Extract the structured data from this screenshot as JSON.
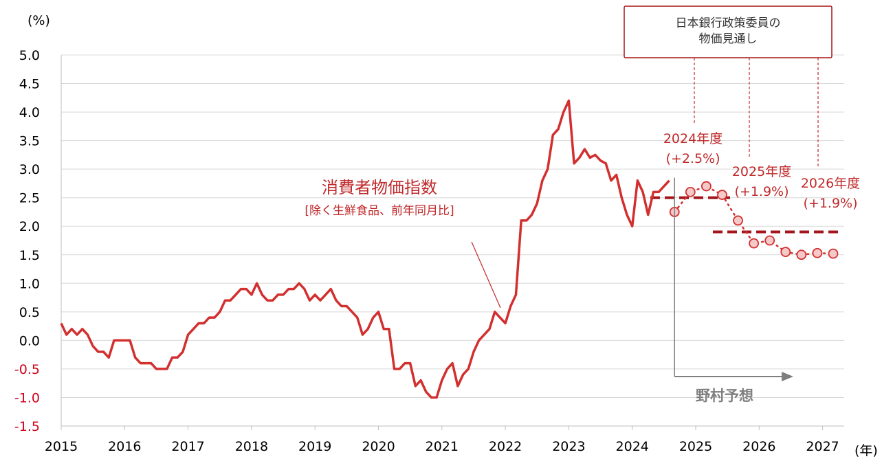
{
  "chart_data": {
    "type": "line",
    "y_unit_label": "(%)",
    "x_unit_label": "(年)",
    "ylim": [
      -1.5,
      5.0
    ],
    "yticks": [
      "5.0",
      "4.5",
      "4.0",
      "3.5",
      "3.0",
      "2.5",
      "2.0",
      "1.5",
      "1.0",
      "0.5",
      "0.0",
      "-0.5",
      "-1.0",
      "-1.5"
    ],
    "xlim": [
      2015,
      2027.333
    ],
    "xticks": [
      "2015",
      "2016",
      "2017",
      "2018",
      "2019",
      "2020",
      "2021",
      "2022",
      "2023",
      "2024",
      "2025",
      "2026",
      "2027"
    ],
    "colors": {
      "series": "#d22f2f",
      "boj": "#a3161c",
      "negative_tick": "#d0021b",
      "grid": "#d9d9d9",
      "forecast_arrow": "#7f7f7f"
    },
    "series": [
      {
        "name": "消費者物価指数",
        "subtitle": "[除く生鮮食品、前年同月比]",
        "start": "2015-01",
        "values": [
          0.3,
          0.1,
          0.2,
          0.1,
          0.2,
          0.1,
          -0.1,
          -0.2,
          -0.2,
          -0.3,
          0.0,
          0.0,
          0.0,
          0.0,
          -0.3,
          -0.4,
          -0.4,
          -0.4,
          -0.5,
          -0.5,
          -0.5,
          -0.3,
          -0.3,
          -0.2,
          0.1,
          0.2,
          0.3,
          0.3,
          0.4,
          0.4,
          0.5,
          0.7,
          0.7,
          0.8,
          0.9,
          0.9,
          0.8,
          1.0,
          0.8,
          0.7,
          0.7,
          0.8,
          0.8,
          0.9,
          0.9,
          1.0,
          0.9,
          0.7,
          0.8,
          0.7,
          0.8,
          0.9,
          0.7,
          0.6,
          0.6,
          0.5,
          0.4,
          0.1,
          0.2,
          0.4,
          0.5,
          0.2,
          0.2,
          -0.5,
          -0.5,
          -0.4,
          -0.4,
          -0.8,
          -0.7,
          -0.9,
          -1.0,
          -1.0,
          -0.7,
          -0.5,
          -0.4,
          -0.8,
          -0.6,
          -0.5,
          -0.2,
          0.0,
          0.1,
          0.2,
          0.5,
          0.4,
          0.3,
          0.6,
          0.8,
          2.1,
          2.1,
          2.2,
          2.4,
          2.8,
          3.0,
          3.6,
          3.7,
          4.0,
          4.2,
          3.1,
          3.2,
          3.35,
          3.2,
          3.25,
          3.15,
          3.1,
          2.8,
          2.9,
          2.5,
          2.2,
          2.0,
          2.8,
          2.6,
          2.2,
          2.6,
          2.6,
          2.7,
          2.8
        ]
      },
      {
        "name": "野村予想",
        "start": "2024-09",
        "step_months": 3,
        "values": [
          2.25,
          2.6,
          2.7,
          2.55,
          2.1,
          1.7,
          1.75,
          1.55,
          1.5,
          1.53,
          1.52
        ]
      }
    ],
    "boj_outlook": {
      "title": "日本銀行政策委員の\n物価見通し",
      "items": [
        {
          "label": "2024年度",
          "value_label": "(+2.5%)",
          "value": 2.5,
          "period": [
            "2024-04",
            "2025-03"
          ]
        },
        {
          "label": "2025年度",
          "value_label": "(+1.9%)",
          "value": 1.9,
          "period": [
            "2025-04",
            "2026-03"
          ]
        },
        {
          "label": "2026年度",
          "value_label": "(+1.9%)",
          "value": 1.9,
          "period": [
            "2026-04",
            "2027-03"
          ]
        }
      ]
    },
    "forecast_arrow_label": "野村予想",
    "forecast_start": "2024-09"
  }
}
